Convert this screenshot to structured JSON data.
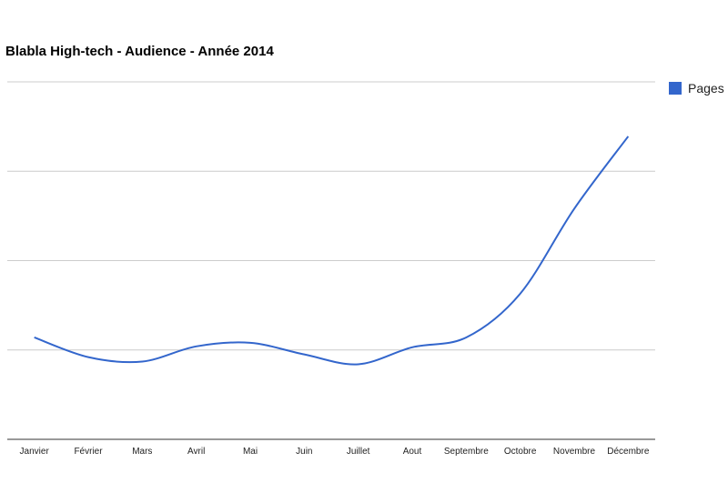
{
  "chart_data": {
    "type": "line",
    "title": "Blabla High-tech - Audience - Année 2014",
    "xlabel": "",
    "ylabel": "",
    "categories": [
      "Janvier",
      "Février",
      "Mars",
      "Avril",
      "Mai",
      "Juin",
      "Juillet",
      "Aout",
      "Septembre",
      "Octobre",
      "Novembre",
      "Décembre"
    ],
    "series": [
      {
        "name": "Pages",
        "color": "#3366cc",
        "values": [
          1.14,
          0.92,
          0.87,
          1.04,
          1.08,
          0.95,
          0.84,
          1.03,
          1.14,
          1.63,
          2.58,
          3.39
        ]
      }
    ],
    "ylim": [
      0,
      4
    ],
    "grid": true,
    "y_tick_labels_shown": false,
    "legend_position": "right"
  }
}
